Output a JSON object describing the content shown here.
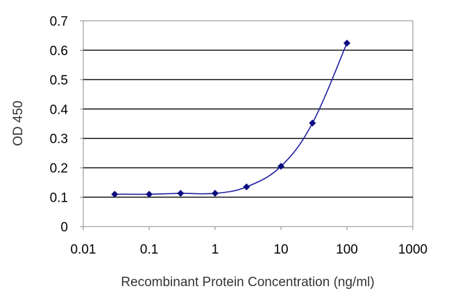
{
  "chart_data": {
    "type": "line",
    "title": "",
    "xlabel": "Recombinant Protein Concentration (ng/ml)",
    "ylabel": "OD 450",
    "x_scale": "log",
    "xlim": [
      0.01,
      1000
    ],
    "ylim": [
      0,
      0.7
    ],
    "x_ticks": [
      "0.01",
      "0.1",
      "1",
      "10",
      "100",
      "1000"
    ],
    "y_ticks": [
      "0",
      "0.1",
      "0.2",
      "0.3",
      "0.4",
      "0.5",
      "0.6",
      "0.7"
    ],
    "grid": "horizontal",
    "legend": "none",
    "series": [
      {
        "x": [
          0.03,
          0.1,
          0.3,
          1,
          3,
          10,
          30,
          100
        ],
        "y": [
          0.11,
          0.11,
          0.113,
          0.113,
          0.135,
          0.205,
          0.352,
          0.624
        ]
      }
    ],
    "colors": {
      "line": "#1f1fa0",
      "marker": "#0a0a80",
      "grid": "#000000",
      "frame": "#888888"
    }
  }
}
